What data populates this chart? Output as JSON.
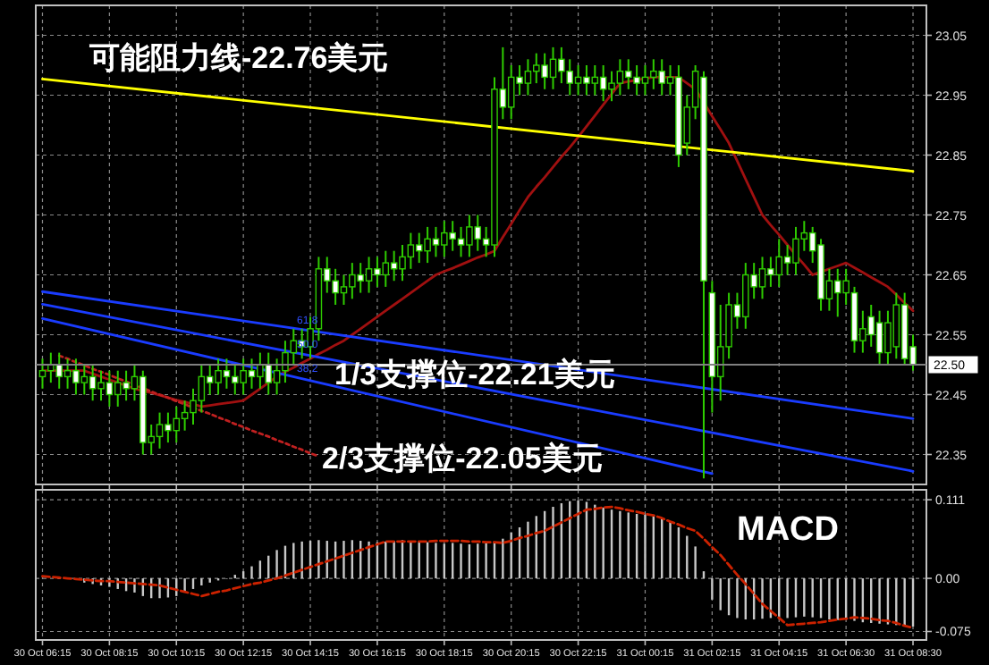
{
  "chart_data": [
    {
      "type": "candlestick",
      "tick_labels": "y",
      "grid": true,
      "categories": [
        "30 Oct 06:15",
        null,
        null,
        null,
        null,
        null,
        null,
        null,
        "30 Oct 08:15",
        null,
        null,
        null,
        null,
        null,
        null,
        null,
        "30 Oct 10:15",
        null,
        null,
        null,
        null,
        null,
        null,
        null,
        "30 Oct 12:15",
        null,
        null,
        null,
        null,
        null,
        null,
        null,
        "30 Oct 14:15",
        null,
        null,
        null,
        null,
        null,
        null,
        null,
        "30 Oct 16:15",
        null,
        null,
        null,
        null,
        null,
        null,
        null,
        "30 Oct 18:15",
        null,
        null,
        null,
        null,
        null,
        null,
        null,
        "30 Oct 20:15",
        null,
        null,
        null,
        null,
        null,
        null,
        null,
        "30 Oct 22:15",
        null,
        null,
        null,
        null,
        null,
        null,
        null,
        "31 Oct 00:15",
        null,
        null,
        null,
        null,
        null,
        null,
        null,
        "31 Oct 02:15",
        null,
        null,
        null,
        null,
        null,
        null,
        null,
        "31 Oct 04:15",
        null,
        null,
        null,
        null,
        null,
        null,
        null,
        "31 Oct 06:30",
        null,
        null,
        null,
        null,
        null,
        null,
        null,
        "31 Oct 08:30"
      ],
      "ohlc": [
        [
          22.48,
          22.51,
          22.46,
          22.49
        ],
        [
          22.49,
          22.52,
          22.47,
          22.5
        ],
        [
          22.5,
          22.52,
          22.46,
          22.48
        ],
        [
          22.48,
          22.51,
          22.46,
          22.49
        ],
        [
          22.49,
          22.51,
          22.45,
          22.47
        ],
        [
          22.47,
          22.5,
          22.45,
          22.48
        ],
        [
          22.48,
          22.5,
          22.44,
          22.46
        ],
        [
          22.46,
          22.49,
          22.44,
          22.47
        ],
        [
          22.47,
          22.49,
          22.43,
          22.45
        ],
        [
          22.45,
          22.49,
          22.43,
          22.47
        ],
        [
          22.47,
          22.49,
          22.44,
          22.46
        ],
        [
          22.46,
          22.5,
          22.44,
          22.48
        ],
        [
          22.48,
          22.49,
          22.35,
          22.37
        ],
        [
          22.37,
          22.4,
          22.35,
          22.38
        ],
        [
          22.38,
          22.42,
          22.36,
          22.4
        ],
        [
          22.4,
          22.42,
          22.37,
          22.39
        ],
        [
          22.39,
          22.43,
          22.37,
          22.41
        ],
        [
          22.41,
          22.44,
          22.39,
          22.42
        ],
        [
          22.42,
          22.46,
          22.4,
          22.44
        ],
        [
          22.44,
          22.5,
          22.42,
          22.48
        ],
        [
          22.48,
          22.5,
          22.45,
          22.47
        ],
        [
          22.47,
          22.51,
          22.45,
          22.49
        ],
        [
          22.49,
          22.51,
          22.46,
          22.48
        ],
        [
          22.48,
          22.5,
          22.45,
          22.47
        ],
        [
          22.47,
          22.51,
          22.45,
          22.49
        ],
        [
          22.49,
          22.51,
          22.46,
          22.48
        ],
        [
          22.48,
          22.52,
          22.46,
          22.5
        ],
        [
          22.5,
          22.52,
          22.45,
          22.47
        ],
        [
          22.47,
          22.51,
          22.45,
          22.49
        ],
        [
          22.49,
          22.54,
          22.47,
          22.52
        ],
        [
          22.52,
          22.56,
          22.5,
          22.54
        ],
        [
          22.54,
          22.56,
          22.51,
          22.53
        ],
        [
          22.53,
          22.58,
          22.51,
          22.56
        ],
        [
          22.56,
          22.68,
          22.54,
          22.66
        ],
        [
          22.66,
          22.68,
          22.62,
          22.64
        ],
        [
          22.64,
          22.66,
          22.6,
          22.62
        ],
        [
          22.62,
          22.65,
          22.6,
          22.63
        ],
        [
          22.63,
          22.67,
          22.61,
          22.65
        ],
        [
          22.65,
          22.67,
          22.62,
          22.64
        ],
        [
          22.64,
          22.68,
          22.62,
          22.66
        ],
        [
          22.66,
          22.68,
          22.63,
          22.65
        ],
        [
          22.65,
          22.69,
          22.63,
          22.67
        ],
        [
          22.67,
          22.69,
          22.64,
          22.66
        ],
        [
          22.66,
          22.7,
          22.64,
          22.68
        ],
        [
          22.68,
          22.72,
          22.66,
          22.7
        ],
        [
          22.7,
          22.72,
          22.67,
          22.69
        ],
        [
          22.69,
          22.73,
          22.67,
          22.71
        ],
        [
          22.71,
          22.73,
          22.68,
          22.7
        ],
        [
          22.7,
          22.74,
          22.68,
          22.72
        ],
        [
          22.72,
          22.74,
          22.69,
          22.71
        ],
        [
          22.71,
          22.73,
          22.68,
          22.7
        ],
        [
          22.7,
          22.75,
          22.68,
          22.73
        ],
        [
          22.73,
          22.75,
          22.69,
          22.71
        ],
        [
          22.71,
          22.73,
          22.68,
          22.7
        ],
        [
          22.7,
          22.98,
          22.68,
          22.96
        ],
        [
          22.96,
          23.03,
          22.91,
          22.93
        ],
        [
          22.93,
          23.0,
          22.91,
          22.98
        ],
        [
          22.98,
          23.0,
          22.95,
          22.97
        ],
        [
          22.97,
          23.01,
          22.95,
          22.99
        ],
        [
          22.99,
          23.02,
          22.97,
          23.0
        ],
        [
          23.0,
          23.02,
          22.96,
          22.98
        ],
        [
          22.98,
          23.03,
          22.96,
          23.01
        ],
        [
          23.01,
          23.03,
          22.97,
          22.99
        ],
        [
          22.99,
          23.01,
          22.95,
          22.97
        ],
        [
          22.97,
          23.0,
          22.95,
          22.98
        ],
        [
          22.98,
          23.0,
          22.95,
          22.97
        ],
        [
          22.97,
          23.0,
          22.95,
          22.98
        ],
        [
          22.98,
          23.0,
          22.94,
          22.96
        ],
        [
          22.96,
          22.99,
          22.94,
          22.97
        ],
        [
          22.97,
          23.01,
          22.95,
          22.99
        ],
        [
          22.99,
          23.01,
          22.96,
          22.98
        ],
        [
          22.98,
          23.0,
          22.95,
          22.97
        ],
        [
          22.97,
          23.0,
          22.95,
          22.98
        ],
        [
          22.98,
          23.01,
          22.96,
          22.99
        ],
        [
          22.99,
          23.01,
          22.95,
          22.97
        ],
        [
          22.97,
          23.0,
          22.95,
          22.98
        ],
        [
          22.98,
          23.0,
          22.83,
          22.85
        ],
        [
          22.87,
          22.95,
          22.85,
          22.93
        ],
        [
          22.93,
          23.0,
          22.91,
          22.99
        ],
        [
          22.98,
          22.99,
          22.31,
          22.64
        ],
        [
          22.62,
          22.64,
          22.42,
          22.48
        ],
        [
          22.48,
          22.6,
          22.44,
          22.53
        ],
        [
          22.53,
          22.62,
          22.51,
          22.6
        ],
        [
          22.6,
          22.62,
          22.56,
          22.58
        ],
        [
          22.58,
          22.67,
          22.56,
          22.65
        ],
        [
          22.65,
          22.67,
          22.61,
          22.63
        ],
        [
          22.63,
          22.68,
          22.61,
          22.66
        ],
        [
          22.66,
          22.68,
          22.63,
          22.65
        ],
        [
          22.65,
          22.71,
          22.63,
          22.68
        ],
        [
          22.68,
          22.7,
          22.65,
          22.67
        ],
        [
          22.67,
          22.73,
          22.65,
          22.71
        ],
        [
          22.71,
          22.74,
          22.69,
          22.72
        ],
        [
          22.72,
          22.73,
          22.67,
          22.69
        ],
        [
          22.7,
          22.71,
          22.59,
          22.61
        ],
        [
          22.61,
          22.66,
          22.59,
          22.64
        ],
        [
          22.64,
          22.66,
          22.58,
          22.62
        ],
        [
          22.62,
          22.66,
          22.6,
          22.64
        ],
        [
          22.62,
          22.63,
          22.52,
          22.54
        ],
        [
          22.54,
          22.59,
          22.52,
          22.56
        ],
        [
          22.58,
          22.6,
          22.53,
          22.55
        ],
        [
          22.57,
          22.59,
          22.5,
          22.52
        ],
        [
          22.52,
          22.59,
          22.5,
          22.57
        ],
        [
          22.53,
          22.62,
          22.51,
          22.6
        ],
        [
          22.6,
          22.62,
          22.5,
          22.51
        ],
        [
          22.53,
          22.55,
          22.49,
          22.5
        ]
      ],
      "ylim": [
        22.3,
        23.1
      ],
      "yticks": [
        22.35,
        22.45,
        22.55,
        22.65,
        22.75,
        22.85,
        22.95,
        23.05
      ],
      "series": [
        {
          "type": "line",
          "color": "#a01010",
          "values": [
            22.49,
            22.49,
            22.49,
            22.49,
            22.49,
            22.49,
            22.485,
            22.48,
            22.475,
            22.47,
            22.465,
            22.46,
            22.456,
            22.453,
            22.449,
            22.445,
            22.441,
            22.438,
            22.434,
            22.43,
            22.432,
            22.434,
            22.436,
            22.438,
            22.44,
            22.45,
            22.46,
            22.47,
            22.48,
            22.488,
            22.495,
            22.503,
            22.51,
            22.518,
            22.525,
            22.533,
            22.54,
            22.55,
            22.56,
            22.57,
            22.58,
            22.59,
            22.6,
            22.61,
            22.62,
            22.63,
            22.64,
            22.65,
            22.656,
            22.661,
            22.667,
            22.673,
            22.679,
            22.684,
            22.69,
            22.713,
            22.735,
            22.758,
            22.78,
            22.797,
            22.813,
            22.83,
            22.847,
            22.863,
            22.88,
            22.898,
            22.916,
            22.934,
            22.952,
            22.97,
            22.973,
            22.975,
            22.978,
            22.98,
            22.98,
            22.98,
            22.98,
            22.97,
            22.96,
            22.938,
            22.915,
            22.893,
            22.87,
            22.84,
            22.81,
            22.78,
            22.75,
            22.733,
            22.717,
            22.7,
            22.683,
            22.667,
            22.65,
            22.655,
            22.66,
            22.665,
            22.67,
            22.662,
            22.654,
            22.646,
            22.638,
            22.63,
            22.617,
            22.603,
            22.59
          ]
        },
        {
          "type": "line",
          "color": "#ffff00",
          "x": [
            "30 Oct 06:15",
            "31 Oct 08:30"
          ],
          "values": [
            22.977,
            22.823
          ]
        },
        {
          "type": "line",
          "color": "#1a3cff",
          "x": [
            "30 Oct 06:15",
            "31 Oct 08:30"
          ],
          "values": [
            22.622,
            22.41
          ]
        },
        {
          "type": "line",
          "color": "#1a3cff",
          "x": [
            "30 Oct 06:15",
            "31 Oct 08:30"
          ],
          "values": [
            22.601,
            22.322
          ]
        },
        {
          "type": "line",
          "color": "#1a3cff",
          "x": [
            "30 Oct 06:15",
            "31 Oct 02:15"
          ],
          "values": [
            22.577,
            22.318
          ]
        },
        {
          "type": "line",
          "color": "#c02020",
          "line_style": "dotted",
          "values": [
            null,
            null,
            22.515,
            22.51,
            22.504,
            22.499,
            22.493,
            22.488,
            22.483,
            22.477,
            22.472,
            22.466,
            22.461,
            22.455,
            22.45,
            22.445,
            22.439,
            22.434,
            22.428,
            22.423,
            22.418,
            22.412,
            22.407,
            22.401,
            22.396,
            22.39,
            22.385,
            22.38,
            22.374,
            22.369,
            22.363,
            22.358,
            22.352,
            22.347,
            null,
            null,
            null,
            null,
            null,
            null,
            null,
            null,
            null,
            null,
            null,
            null,
            null,
            null,
            null,
            null,
            null,
            null,
            null,
            null,
            null,
            null,
            null,
            null,
            null,
            null,
            null,
            null,
            null,
            null,
            null,
            null,
            null,
            null,
            null,
            null,
            null,
            null,
            null,
            null,
            null,
            null,
            null,
            null,
            null,
            null,
            null,
            null,
            null,
            null,
            null,
            null,
            null,
            null,
            null,
            null,
            null,
            null,
            null,
            null,
            null,
            null,
            null,
            null,
            null,
            null,
            null,
            null,
            null,
            null,
            null
          ]
        }
      ],
      "ref_lines": [
        {
          "axis": "y",
          "value": 22.5,
          "label": "22.50",
          "color": "#808080"
        }
      ],
      "annotations": [
        "可能阻力线-22.76美元",
        "1/3支撑位-22.21美元",
        "2/3支撑位-22.05美元",
        {
          "text": "61.8",
          "y": 22.574
        },
        {
          "text": "50.0",
          "y": 22.535
        },
        {
          "text": "38.2",
          "y": 22.494
        }
      ]
    },
    {
      "type": "bar",
      "grid": true,
      "categories": [
        "30 Oct 06:15",
        null,
        null,
        null,
        null,
        null,
        null,
        null,
        "30 Oct 08:15",
        null,
        null,
        null,
        null,
        null,
        null,
        null,
        "30 Oct 10:15",
        null,
        null,
        null,
        null,
        null,
        null,
        null,
        "30 Oct 12:15",
        null,
        null,
        null,
        null,
        null,
        null,
        null,
        "30 Oct 14:15",
        null,
        null,
        null,
        null,
        null,
        null,
        null,
        "30 Oct 16:15",
        null,
        null,
        null,
        null,
        null,
        null,
        null,
        "30 Oct 18:15",
        null,
        null,
        null,
        null,
        null,
        null,
        null,
        "30 Oct 20:15",
        null,
        null,
        null,
        null,
        null,
        null,
        null,
        "30 Oct 22:15",
        null,
        null,
        null,
        null,
        null,
        null,
        null,
        "31 Oct 00:15",
        null,
        null,
        null,
        null,
        null,
        null,
        null,
        "31 Oct 02:15",
        null,
        null,
        null,
        null,
        null,
        null,
        null,
        "31 Oct 04:15",
        null,
        null,
        null,
        null,
        null,
        null,
        null,
        "31 Oct 06:30",
        null,
        null,
        null,
        null,
        null,
        null,
        null,
        "31 Oct 08:30"
      ],
      "ylim": [
        -0.087,
        0.125
      ],
      "yticks": [
        0.111,
        {
          "value": 0,
          "label": "0.00"
        },
        -0.075
      ],
      "series": [
        {
          "type": "bar",
          "color": "#c8c8c8",
          "values": [
            null,
            null,
            0,
            null,
            null,
            -0.006,
            -0.008,
            -0.01,
            -0.012,
            -0.015,
            -0.018,
            -0.02,
            -0.025,
            -0.028,
            -0.028,
            -0.027,
            -0.025,
            -0.02,
            -0.015,
            -0.01,
            -0.006,
            -0.003,
            0,
            0.005,
            0.01,
            0.017,
            0.025,
            0.032,
            0.04,
            0.046,
            0.05,
            0.052,
            0.053,
            0.054,
            0.053,
            0.052,
            0.053,
            0.054,
            0.053,
            0.052,
            0.051,
            0.052,
            0.053,
            0.054,
            0.053,
            0.052,
            0.051,
            0.05,
            0.049,
            0.05,
            0.049,
            0.048,
            0.049,
            0.05,
            0.052,
            0.056,
            0.065,
            0.072,
            0.08,
            0.088,
            0.095,
            0.101,
            0.106,
            0.109,
            0.11,
            0.108,
            0.104,
            0.1,
            0.097,
            0.095,
            0.093,
            0.091,
            0.09,
            0.088,
            0.085,
            0.08,
            0.072,
            0.06,
            0.045,
            0.01,
            -0.03,
            -0.045,
            -0.052,
            -0.056,
            -0.058,
            -0.058,
            -0.057,
            -0.056,
            -0.055,
            -0.056,
            -0.055,
            -0.054,
            -0.055,
            -0.056,
            -0.058,
            -0.059,
            -0.058,
            -0.06,
            -0.062,
            -0.063,
            -0.064,
            -0.065,
            -0.066,
            -0.067,
            -0.068
          ]
        },
        {
          "type": "line",
          "color": "#cc2200",
          "line_style": "dashed",
          "values": [
            0.003,
            0.002,
            0.001,
            0,
            -0.001,
            -0.002,
            -0.003,
            -0.004,
            -0.004,
            -0.005,
            -0.006,
            -0.007,
            -0.008,
            -0.009,
            -0.01,
            -0.013,
            -0.016,
            -0.019,
            -0.022,
            -0.025,
            -0.022,
            -0.019,
            -0.017,
            -0.014,
            -0.011,
            -0.008,
            -0.006,
            -0.003,
            0,
            0.004,
            0.008,
            0.012,
            0.016,
            0.02,
            0.024,
            0.028,
            0.032,
            0.036,
            0.04,
            0.044,
            0.048,
            0.052,
            0.052,
            0.052,
            0.052,
            0.052,
            0.052,
            0.053,
            0.053,
            0.053,
            0.053,
            0.052,
            0.052,
            0.051,
            0.051,
            0.05,
            0.053,
            0.057,
            0.06,
            0.064,
            0.067,
            0.073,
            0.079,
            0.085,
            0.091,
            0.097,
            0.098,
            0.1,
            0.101,
            0.099,
            0.096,
            0.094,
            0.091,
            0.089,
            0.085,
            0.08,
            0.076,
            0.071,
            0.067,
            0.056,
            0.044,
            0.033,
            0.019,
            0.005,
            -0.008,
            -0.022,
            -0.036,
            -0.046,
            -0.056,
            -0.066,
            -0.065,
            -0.064,
            -0.063,
            -0.062,
            -0.06,
            -0.058,
            -0.057,
            -0.055,
            -0.056,
            -0.057,
            -0.059,
            -0.06,
            -0.063,
            -0.067,
            -0.07
          ]
        }
      ],
      "annotations": [
        "MACD"
      ]
    }
  ]
}
